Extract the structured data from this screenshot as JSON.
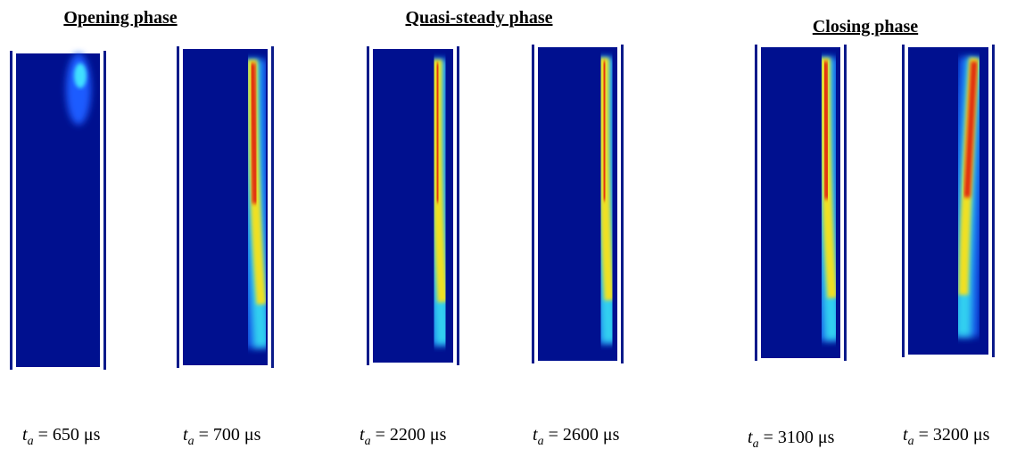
{
  "headers": [
    "Opening phase",
    "Quasi-steady phase",
    "Closing phase"
  ],
  "panels": [
    {
      "symbol": "t",
      "subscript": "a",
      "value": "= 650 μs"
    },
    {
      "symbol": "t",
      "subscript": "a",
      "value": "= 700 μs"
    },
    {
      "symbol": "t",
      "subscript": "a",
      "value": "= 2200 μs"
    },
    {
      "symbol": "t",
      "subscript": "a",
      "value": "= 2600 μs"
    },
    {
      "symbol": "t",
      "subscript": "a",
      "value": "= 3100 μs"
    },
    {
      "symbol": "t",
      "subscript": "a",
      "value": "= 3200 μs"
    }
  ]
}
